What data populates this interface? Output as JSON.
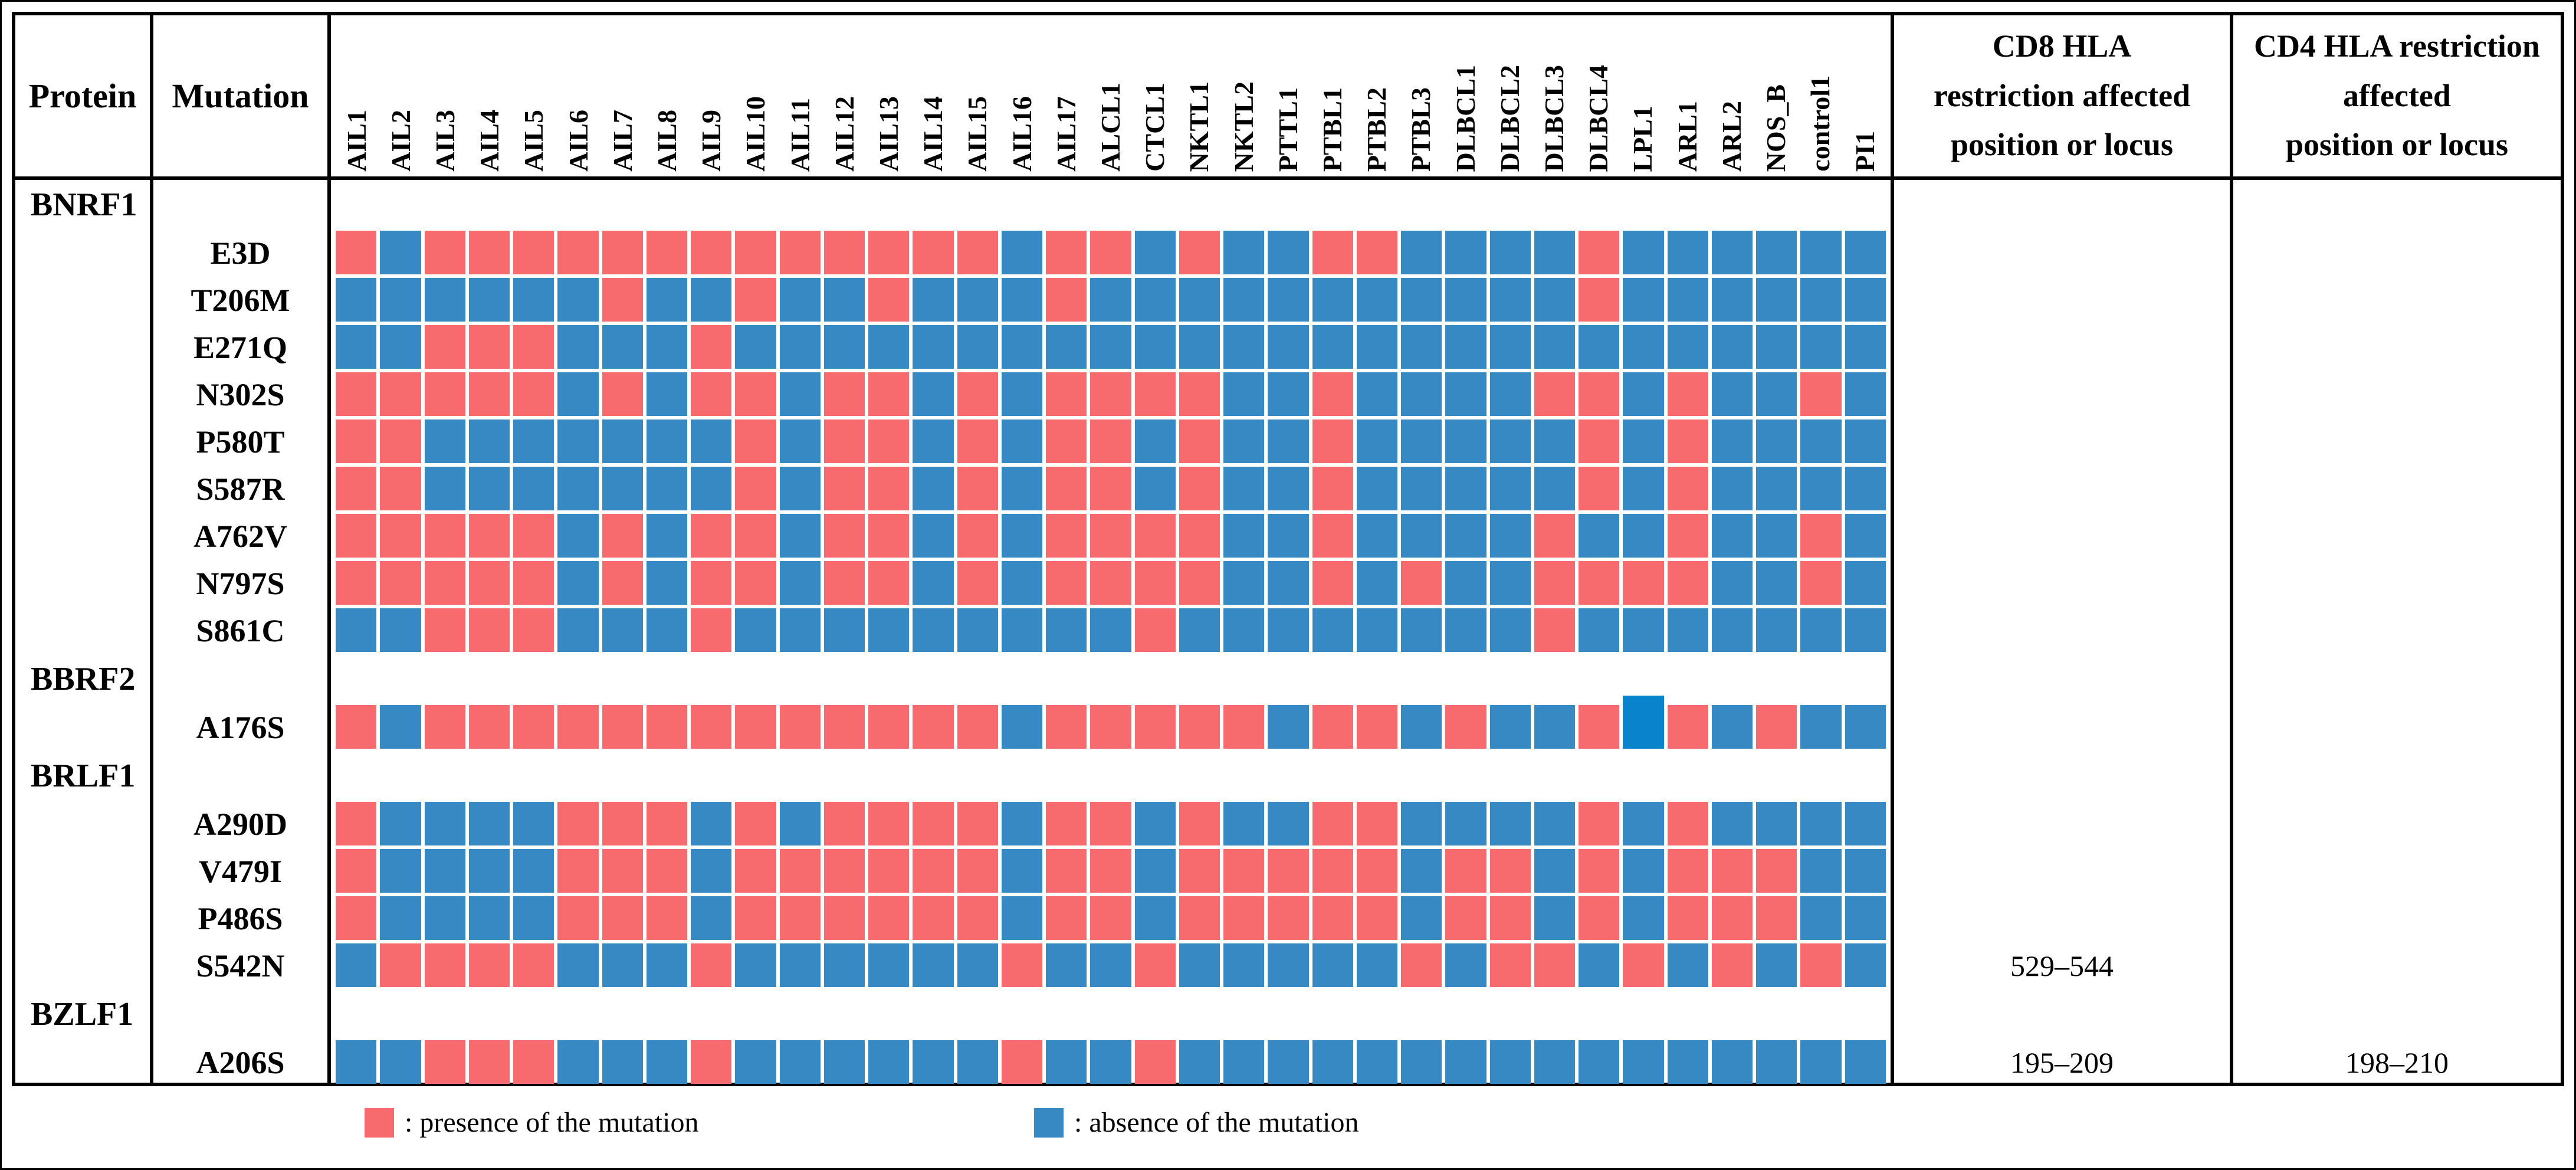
{
  "table": {
    "protein_header": "Protein",
    "mutation_header": "Mutation",
    "cd8_header": "CD8 HLA\nrestriction affected\nposition or locus",
    "cd4_header": "CD4 HLA restriction\naffected\nposition or locus"
  },
  "legend": {
    "presence_label": ": presence of the mutation",
    "absence_label": ": absence of the mutation"
  },
  "colors": {
    "presence": "#F76B6F",
    "absence": "#3789C4",
    "absence_dark": "#0884CC",
    "border": "#000000"
  },
  "chart_data": {
    "type": "heatmap",
    "title": "",
    "value_legend": {
      "1": "presence of the mutation",
      "0": "absence of the mutation",
      "2": "absence of the mutation (dark highlighted cell)"
    },
    "columns": [
      "AIL1",
      "AIL2",
      "AIL3",
      "AIL4",
      "AIL5",
      "AIL6",
      "AIL7",
      "AIL8",
      "AIL9",
      "AIL10",
      "AIL11",
      "AIL12",
      "AIL13",
      "AIL14",
      "AIL15",
      "AIL16",
      "AIL17",
      "ALCL1",
      "CTCL1",
      "NKTL1",
      "NKTL2",
      "PTTL1",
      "PTBL1",
      "PTBL2",
      "PTBL3",
      "DLBCL1",
      "DLBCL2",
      "DLBCL3",
      "DLBCL4",
      "LPL1",
      "ARL1",
      "ARL2",
      "NOS_B",
      "control1",
      "PI1"
    ],
    "groups": [
      {
        "protein": "BNRF1",
        "rows": [
          {
            "mutation": "E3D",
            "values": [
              1,
              0,
              1,
              1,
              1,
              1,
              1,
              1,
              1,
              1,
              1,
              1,
              1,
              1,
              1,
              0,
              1,
              1,
              0,
              1,
              0,
              0,
              1,
              1,
              0,
              0,
              0,
              0,
              1,
              0,
              0,
              0,
              0,
              0,
              0
            ],
            "cd8": "",
            "cd4": ""
          },
          {
            "mutation": "T206M",
            "values": [
              0,
              0,
              0,
              0,
              0,
              0,
              1,
              0,
              0,
              1,
              0,
              0,
              1,
              0,
              0,
              0,
              1,
              0,
              0,
              0,
              0,
              0,
              0,
              0,
              0,
              0,
              0,
              0,
              1,
              0,
              0,
              0,
              0,
              0,
              0
            ],
            "cd8": "",
            "cd4": ""
          },
          {
            "mutation": "E271Q",
            "values": [
              0,
              0,
              1,
              1,
              1,
              0,
              0,
              0,
              1,
              0,
              0,
              0,
              0,
              0,
              0,
              0,
              0,
              0,
              0,
              0,
              0,
              0,
              0,
              0,
              0,
              0,
              0,
              0,
              0,
              0,
              0,
              0,
              0,
              0,
              0
            ],
            "cd8": "",
            "cd4": ""
          },
          {
            "mutation": "N302S",
            "values": [
              1,
              1,
              1,
              1,
              1,
              0,
              1,
              0,
              1,
              1,
              0,
              1,
              1,
              0,
              1,
              0,
              1,
              1,
              1,
              1,
              0,
              0,
              1,
              0,
              0,
              0,
              0,
              1,
              1,
              0,
              1,
              0,
              0,
              1,
              0
            ],
            "cd8": "",
            "cd4": ""
          },
          {
            "mutation": "P580T",
            "values": [
              1,
              1,
              0,
              0,
              0,
              0,
              0,
              0,
              0,
              1,
              0,
              1,
              1,
              0,
              1,
              0,
              1,
              1,
              0,
              1,
              0,
              0,
              1,
              0,
              0,
              0,
              0,
              0,
              1,
              0,
              1,
              0,
              0,
              0,
              0
            ],
            "cd8": "",
            "cd4": ""
          },
          {
            "mutation": "S587R",
            "values": [
              1,
              1,
              0,
              0,
              0,
              0,
              0,
              0,
              0,
              1,
              0,
              1,
              1,
              0,
              1,
              0,
              1,
              1,
              0,
              1,
              0,
              0,
              1,
              0,
              0,
              0,
              0,
              0,
              1,
              0,
              1,
              0,
              0,
              0,
              0
            ],
            "cd8": "",
            "cd4": ""
          },
          {
            "mutation": "A762V",
            "values": [
              1,
              1,
              1,
              1,
              1,
              0,
              1,
              0,
              1,
              1,
              0,
              1,
              1,
              0,
              1,
              0,
              1,
              1,
              1,
              1,
              0,
              0,
              1,
              0,
              0,
              0,
              0,
              1,
              0,
              0,
              1,
              0,
              0,
              1,
              0
            ],
            "cd8": "",
            "cd4": ""
          },
          {
            "mutation": "N797S",
            "values": [
              1,
              1,
              1,
              1,
              1,
              0,
              1,
              0,
              1,
              1,
              0,
              1,
              1,
              0,
              1,
              0,
              1,
              1,
              1,
              1,
              0,
              0,
              1,
              0,
              1,
              0,
              0,
              1,
              1,
              1,
              1,
              0,
              0,
              1,
              0
            ],
            "cd8": "",
            "cd4": ""
          },
          {
            "mutation": "S861C",
            "values": [
              0,
              0,
              1,
              1,
              1,
              0,
              0,
              0,
              1,
              0,
              0,
              0,
              0,
              0,
              0,
              0,
              0,
              0,
              1,
              0,
              0,
              0,
              0,
              0,
              0,
              0,
              0,
              1,
              0,
              0,
              0,
              0,
              0,
              0,
              0
            ],
            "cd8": "",
            "cd4": ""
          }
        ]
      },
      {
        "protein": "BBRF2",
        "rows": [
          {
            "mutation": "A176S",
            "values": [
              1,
              0,
              1,
              1,
              1,
              1,
              1,
              1,
              1,
              1,
              1,
              1,
              1,
              1,
              1,
              0,
              1,
              1,
              1,
              1,
              1,
              0,
              1,
              1,
              0,
              1,
              0,
              0,
              1,
              2,
              1,
              0,
              1,
              0,
              0
            ],
            "cd8": "",
            "cd4": ""
          }
        ]
      },
      {
        "protein": "BRLF1",
        "rows": [
          {
            "mutation": "A290D",
            "values": [
              1,
              0,
              0,
              0,
              0,
              1,
              1,
              1,
              0,
              1,
              0,
              1,
              1,
              1,
              1,
              0,
              1,
              1,
              0,
              1,
              0,
              0,
              1,
              1,
              0,
              0,
              0,
              0,
              1,
              0,
              1,
              0,
              0,
              0,
              0
            ],
            "cd8": "",
            "cd4": ""
          },
          {
            "mutation": "V479I",
            "values": [
              1,
              0,
              0,
              0,
              0,
              1,
              1,
              1,
              0,
              1,
              1,
              1,
              1,
              1,
              1,
              0,
              1,
              1,
              0,
              1,
              1,
              1,
              1,
              1,
              0,
              1,
              1,
              0,
              1,
              0,
              1,
              1,
              1,
              0,
              0
            ],
            "cd8": "",
            "cd4": ""
          },
          {
            "mutation": "P486S",
            "values": [
              1,
              0,
              0,
              0,
              0,
              1,
              1,
              1,
              0,
              1,
              1,
              1,
              1,
              1,
              1,
              0,
              1,
              1,
              0,
              1,
              1,
              1,
              1,
              1,
              0,
              1,
              1,
              0,
              1,
              0,
              1,
              1,
              1,
              0,
              0
            ],
            "cd8": "",
            "cd4": ""
          },
          {
            "mutation": "S542N",
            "values": [
              0,
              1,
              1,
              1,
              1,
              0,
              0,
              0,
              1,
              0,
              0,
              0,
              0,
              0,
              0,
              1,
              0,
              0,
              1,
              0,
              0,
              0,
              0,
              0,
              1,
              0,
              1,
              1,
              0,
              1,
              0,
              1,
              0,
              1,
              0
            ],
            "cd8": "529–544",
            "cd4": ""
          }
        ]
      },
      {
        "protein": "BZLF1",
        "rows": [
          {
            "mutation": "A206S",
            "values": [
              0,
              0,
              1,
              1,
              1,
              0,
              0,
              0,
              1,
              0,
              0,
              0,
              0,
              0,
              0,
              1,
              0,
              0,
              1,
              0,
              0,
              0,
              0,
              0,
              0,
              0,
              0,
              0,
              0,
              0,
              0,
              0,
              0,
              0,
              0
            ],
            "cd8": "195–209",
            "cd4": "198–210"
          }
        ]
      }
    ]
  }
}
